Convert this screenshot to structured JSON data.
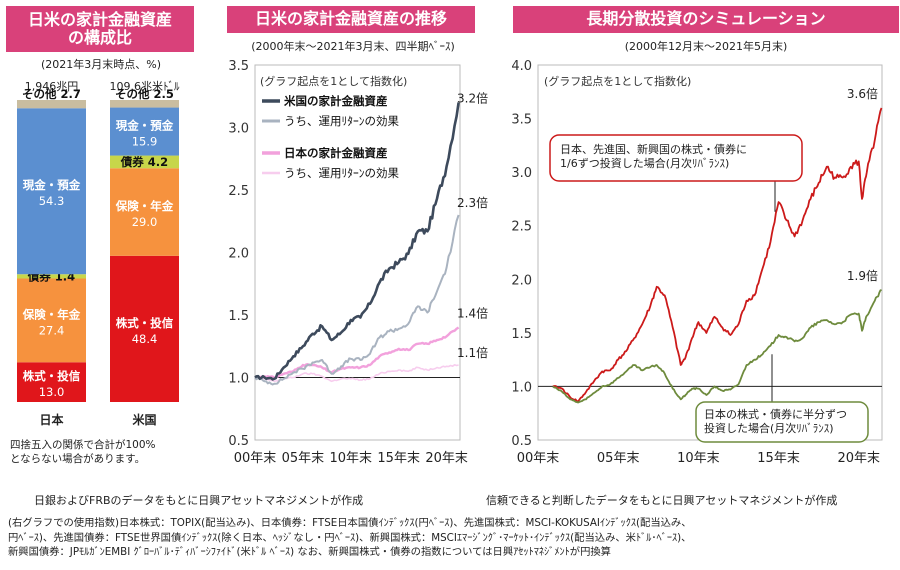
{
  "panel1": {
    "title": "日米の家計金融資産\nの構成比",
    "subtitle": "(2021年3月末時点、%)",
    "footnote": "四捨五入の関係で合計が100%\nとならない場合があります。",
    "chart_data": {
      "type": "bar",
      "stacked": true,
      "categories": [
        "日本",
        "米国"
      ],
      "totals": [
        "1,946兆円",
        "109.6兆米ﾄﾞﾙ"
      ],
      "series": [
        {
          "name": "株式・投信",
          "values": [
            13.0,
            48.4
          ],
          "color": "#e0161b"
        },
        {
          "name": "保険・年金",
          "values": [
            27.4,
            29.0
          ],
          "color": "#f6923e"
        },
        {
          "name": "債券",
          "values": [
            1.4,
            4.2
          ],
          "color": "#c7d64a"
        },
        {
          "name": "現金・預金",
          "values": [
            54.3,
            15.9
          ],
          "color": "#5b8fd0"
        },
        {
          "name": "その他",
          "values": [
            2.7,
            2.5
          ],
          "color": "#c9bda0"
        }
      ]
    }
  },
  "panel2": {
    "title": "日米の家計金融資産の推移",
    "subtitle": "(2000年末～2021年3月末、四半期ﾍﾞｰｽ)",
    "note": "(グラフ起点を1として指数化)",
    "credit": "日銀およびFRBのデータをもとに日興アセットマネジメントが作成",
    "chart_data": {
      "type": "line",
      "x": [
        2000,
        2001,
        2002,
        2003,
        2004,
        2005,
        2006,
        2007,
        2008,
        2009,
        2010,
        2011,
        2012,
        2013,
        2014,
        2015,
        2016,
        2017,
        2018,
        2019,
        2020,
        2021.25
      ],
      "xticks": [
        "00年末",
        "05年末",
        "10年末",
        "15年末",
        "20年末"
      ],
      "ylim": [
        0.5,
        3.5
      ],
      "yticks": [
        0.5,
        1.0,
        1.5,
        2.0,
        2.5,
        3.0,
        3.5
      ],
      "series": [
        {
          "name": "米国の家計金融資産",
          "color": "#3d4a5c",
          "width": 2.6,
          "end_label": "3.2倍",
          "values": [
            1.0,
            1.0,
            0.99,
            1.08,
            1.17,
            1.25,
            1.35,
            1.41,
            1.3,
            1.36,
            1.46,
            1.48,
            1.59,
            1.76,
            1.87,
            1.92,
            1.99,
            2.17,
            2.17,
            2.43,
            2.69,
            3.2
          ]
        },
        {
          "name": "うち、運用ﾘﾀｰﾝの効果",
          "color": "#a9b3c0",
          "width": 2.0,
          "end_label": "2.3倍",
          "values": [
            1.0,
            0.97,
            0.95,
            0.99,
            1.04,
            1.07,
            1.12,
            1.14,
            1.03,
            1.09,
            1.15,
            1.14,
            1.19,
            1.32,
            1.37,
            1.39,
            1.43,
            1.57,
            1.52,
            1.69,
            1.88,
            2.3
          ]
        },
        {
          "name": "日本の家計金融資産",
          "color": "#f2a1dc",
          "width": 2.4,
          "end_label": "1.4倍",
          "values": [
            1.0,
            1.01,
            1.0,
            1.03,
            1.05,
            1.1,
            1.1,
            1.08,
            1.04,
            1.07,
            1.08,
            1.08,
            1.1,
            1.17,
            1.2,
            1.23,
            1.22,
            1.27,
            1.27,
            1.3,
            1.33,
            1.4
          ]
        },
        {
          "name": "うち、運用ﾘﾀｰﾝの効果",
          "color": "#f7cdee",
          "width": 1.6,
          "end_label": "1.1倍",
          "values": [
            1.0,
            0.99,
            0.97,
            0.99,
            1.0,
            1.03,
            1.03,
            1.01,
            0.97,
            0.99,
            0.99,
            0.98,
            0.99,
            1.03,
            1.05,
            1.06,
            1.05,
            1.08,
            1.06,
            1.08,
            1.09,
            1.1
          ]
        }
      ]
    }
  },
  "panel3": {
    "title": "長期分散投資のシミュレーション",
    "subtitle": "(2000年12月末～2021年5月末)",
    "note": "(グラフ起点を1として指数化)",
    "credit": "信頼できると判断したデータをもとに日興アセットマネジメントが作成",
    "callout_top": "日本、先進国、新興国の株式・債券に\n1/6ずつ投資した場合(月次ﾘﾊﾞﾗﾝｽ)",
    "callout_bottom": "日本の株式・債券に半分ずつ\n投資した場合(月次ﾘﾊﾞﾗﾝｽ)",
    "chart_data": {
      "type": "line",
      "x": [
        2000.92,
        2001.5,
        2002,
        2002.5,
        2003,
        2003.5,
        2004,
        2004.5,
        2005,
        2005.5,
        2006,
        2006.5,
        2007,
        2007.4,
        2007.9,
        2008.4,
        2008.9,
        2009.2,
        2009.6,
        2010,
        2010.5,
        2011,
        2011.5,
        2012,
        2012.5,
        2013,
        2013.5,
        2014,
        2014.5,
        2015,
        2015.5,
        2016,
        2016.5,
        2017,
        2017.5,
        2018,
        2018.5,
        2019,
        2019.5,
        2020,
        2020.2,
        2020.5,
        2021,
        2021.42
      ],
      "xticks": [
        "00年末",
        "05年末",
        "10年末",
        "15年末",
        "20年末"
      ],
      "ylim": [
        0.5,
        4.0
      ],
      "yticks": [
        0.5,
        1.0,
        1.5,
        2.0,
        2.5,
        3.0,
        3.5,
        4.0
      ],
      "series": [
        {
          "name": "6資産均等",
          "color": "#cc1a1a",
          "end_label": "3.6倍",
          "values": [
            1.0,
            0.98,
            0.9,
            0.86,
            0.95,
            1.05,
            1.14,
            1.15,
            1.25,
            1.33,
            1.45,
            1.58,
            1.75,
            1.93,
            1.85,
            1.55,
            1.2,
            1.27,
            1.45,
            1.6,
            1.5,
            1.65,
            1.55,
            1.48,
            1.58,
            1.8,
            1.85,
            2.1,
            2.35,
            2.72,
            2.55,
            2.4,
            2.55,
            2.75,
            2.9,
            3.05,
            2.95,
            2.95,
            3.05,
            3.1,
            2.75,
            3.0,
            3.3,
            3.6
          ]
        },
        {
          "name": "日本株式・債券半分ずつ",
          "color": "#6e8b3d",
          "end_label": "1.9倍",
          "values": [
            1.0,
            0.95,
            0.88,
            0.85,
            0.88,
            0.94,
            1.0,
            1.02,
            1.08,
            1.14,
            1.2,
            1.15,
            1.18,
            1.2,
            1.12,
            0.98,
            0.88,
            0.92,
            0.98,
            0.98,
            0.92,
            1.0,
            0.96,
            0.97,
            1.02,
            1.2,
            1.25,
            1.3,
            1.38,
            1.48,
            1.46,
            1.42,
            1.45,
            1.55,
            1.6,
            1.62,
            1.58,
            1.6,
            1.67,
            1.68,
            1.52,
            1.66,
            1.8,
            1.9
          ]
        }
      ]
    }
  },
  "bottom_note": "(右グラフでの使用指数)日本株式：TOPIX(配当込み)、日本債券：FTSE日本国債ｲﾝﾃﾞｯｸｽ(円ﾍﾞｰｽ)、先進国株式：MSCI-KOKUSAIｲﾝﾃﾞｯｸｽ(配当込み、\n円ﾍﾞｰｽ)、先進国債券：FTSE世界国債ｲﾝﾃﾞｯｸｽ(除く日本、ﾍｯｼﾞなし・円ﾍﾞｰｽ)、新興国株式：MSCIｴﾏｰｼﾞﾝｸﾞ･ﾏｰｹｯﾄ･ｲﾝﾃﾞｯｸｽ(配当込み、米ﾄﾞﾙ･ﾍﾞｰｽ)、\n新興国債券：JPﾓﾙｶﾞﾝEMBI ｸﾞﾛｰﾊﾞﾙ･ﾃﾞｨﾊﾞｰｼﾌｧｲﾄﾞ(米ﾄﾞﾙ ﾍﾞｰｽ) なお、新興国株式・債券の指数については日興ｱｾｯﾄﾏﾈｼﾞﾒﾝﾄが円換算"
}
